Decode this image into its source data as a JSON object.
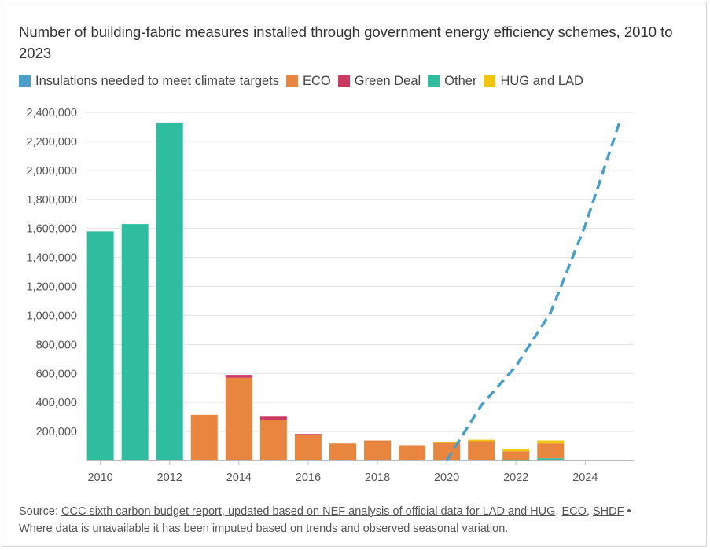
{
  "title": "Number of building-fabric measures installed through government energy efficiency schemes, 2010 to 2023",
  "legend": [
    {
      "label": "Insulations needed to meet climate targets",
      "color": "#4a9fc8"
    },
    {
      "label": "ECO",
      "color": "#e8853f"
    },
    {
      "label": "Green Deal",
      "color": "#cc3a64"
    },
    {
      "label": "Other",
      "color": "#2fbd9f"
    },
    {
      "label": "HUG and LAD",
      "color": "#f2c30f"
    }
  ],
  "source": {
    "prefix": "Source: ",
    "link_main": "CCC sixth carbon budget report, updated based on NEF analysis of official data for LAD and HUG",
    "sep1": ", ",
    "link_eco": "ECO",
    "sep2": ", ",
    "link_shdf": "SHDF",
    "suffix": " •",
    "note": "Where data is unavailable it has been imputed based on trends and observed seasonal variation."
  },
  "chart_data": {
    "type": "bar",
    "stacked": true,
    "title": "Number of building-fabric measures installed through government energy efficiency schemes, 2010 to 2023",
    "x_tick_labels": [
      "2010",
      "2012",
      "2014",
      "2016",
      "2018",
      "2020",
      "2022",
      "2024"
    ],
    "xlim": [
      2009.6,
      2025.4
    ],
    "y_tick_labels": [
      "200,000",
      "400,000",
      "600,000",
      "800,000",
      "1,000,000",
      "1,200,000",
      "1,400,000",
      "1,600,000",
      "1,800,000",
      "2,000,000",
      "2,200,000",
      "2,400,000"
    ],
    "ylim": [
      0,
      2400000
    ],
    "grid": true,
    "legend_position": "top-left",
    "categories": [
      2010,
      2011,
      2012,
      2013,
      2014,
      2015,
      2016,
      2017,
      2018,
      2019,
      2020,
      2021,
      2022,
      2023
    ],
    "series": [
      {
        "name": "Other",
        "color": "#2fbd9f",
        "values": [
          1580000,
          1630000,
          2330000,
          0,
          0,
          0,
          0,
          0,
          0,
          0,
          0,
          0,
          3000,
          15000
        ]
      },
      {
        "name": "ECO",
        "color": "#e8853f",
        "values": [
          0,
          0,
          0,
          315000,
          570000,
          280000,
          180000,
          118000,
          138000,
          106000,
          123000,
          133000,
          60000,
          103000
        ]
      },
      {
        "name": "Green Deal",
        "color": "#cc3a64",
        "values": [
          0,
          0,
          0,
          0,
          20000,
          22000,
          3000,
          0,
          0,
          0,
          0,
          0,
          0,
          0
        ]
      },
      {
        "name": "HUG and LAD",
        "color": "#f2c30f",
        "values": [
          0,
          0,
          0,
          0,
          0,
          0,
          0,
          0,
          0,
          0,
          3000,
          10000,
          18000,
          20000
        ]
      }
    ],
    "line_series": {
      "name": "Insulations needed to meet climate targets",
      "color": "#4a9fc8",
      "style": "dashed",
      "x": [
        2020,
        2021,
        2022,
        2023,
        2024,
        2025
      ],
      "y": [
        0,
        380000,
        650000,
        1020000,
        1620000,
        2340000
      ]
    }
  }
}
